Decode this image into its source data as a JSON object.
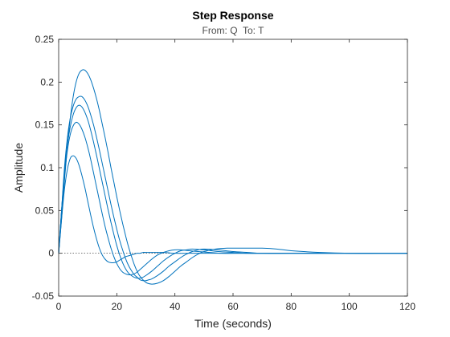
{
  "chart_data": {
    "type": "line",
    "title": "Step Response",
    "subtitle": "From: Q  To: T",
    "xlabel": "Time (seconds)",
    "ylabel": "Amplitude",
    "xlim": [
      0,
      120
    ],
    "ylim": [
      -0.05,
      0.25
    ],
    "xticks": [
      0,
      20,
      40,
      60,
      80,
      100,
      120
    ],
    "yticks": [
      -0.05,
      0,
      0.05,
      0.1,
      0.15,
      0.2,
      0.25
    ],
    "xtick_labels": [
      "0",
      "20",
      "40",
      "60",
      "80",
      "100",
      "120"
    ],
    "ytick_labels": [
      "-0.05",
      "0",
      "0.05",
      "0.1",
      "0.15",
      "0.2",
      "0.25"
    ],
    "grid": false,
    "baseline": 0,
    "line_color": "#0072BD",
    "series": [
      {
        "x": [
          0,
          1,
          2,
          3,
          4,
          5,
          6,
          7,
          8,
          9,
          10,
          11,
          12,
          13,
          14,
          15,
          16,
          17,
          18,
          19,
          20,
          21,
          22,
          23,
          24,
          25,
          26,
          27,
          28,
          29,
          30,
          31,
          32,
          33,
          34,
          35,
          36,
          38,
          40,
          45,
          50,
          55,
          60,
          70,
          80,
          90,
          100,
          110,
          120
        ],
        "values": [
          0,
          0.04,
          0.075,
          0.098,
          0.111,
          0.114,
          0.111,
          0.103,
          0.091,
          0.077,
          0.061,
          0.045,
          0.03,
          0.017,
          0.006,
          -0.002,
          -0.007,
          -0.01,
          -0.011,
          -0.011,
          -0.01,
          -0.008,
          -0.006,
          -0.004,
          -0.003,
          -0.002,
          -0.001,
          0,
          0,
          0.001,
          0.001,
          0.001,
          0.001,
          0.001,
          0.001,
          0.001,
          0.001,
          0.0005,
          0,
          0,
          0,
          0,
          0,
          0,
          0,
          0,
          0,
          0,
          0
        ]
      },
      {
        "x": [
          0,
          1,
          2,
          3,
          4,
          5,
          6,
          7,
          8,
          9,
          10,
          11,
          12,
          13,
          14,
          15,
          16,
          17,
          18,
          19,
          20,
          21,
          22,
          23,
          24,
          25,
          26,
          27,
          28,
          29,
          30,
          32,
          34,
          36,
          38,
          40,
          42,
          45,
          48,
          52,
          56,
          60,
          65,
          70,
          80,
          90,
          100,
          110,
          120
        ],
        "values": [
          0,
          0.05,
          0.09,
          0.12,
          0.139,
          0.149,
          0.153,
          0.151,
          0.145,
          0.136,
          0.124,
          0.11,
          0.094,
          0.078,
          0.062,
          0.046,
          0.031,
          0.018,
          0.006,
          -0.004,
          -0.012,
          -0.018,
          -0.022,
          -0.024,
          -0.025,
          -0.025,
          -0.024,
          -0.022,
          -0.019,
          -0.016,
          -0.013,
          -0.007,
          -0.002,
          0.001,
          0.003,
          0.004,
          0.004,
          0.003,
          0.002,
          0.001,
          0,
          0,
          0,
          0,
          0,
          0,
          0,
          0,
          0
        ]
      },
      {
        "x": [
          0,
          1,
          2,
          3,
          4,
          5,
          6,
          7,
          8,
          9,
          10,
          11,
          12,
          13,
          14,
          15,
          16,
          17,
          18,
          19,
          20,
          21,
          22,
          23,
          24,
          25,
          26,
          27,
          28,
          29,
          30,
          32,
          34,
          36,
          38,
          40,
          42,
          44,
          46,
          50,
          55,
          60,
          65,
          70,
          80,
          90,
          100,
          110,
          120
        ],
        "values": [
          0,
          0.05,
          0.095,
          0.126,
          0.148,
          0.162,
          0.17,
          0.173,
          0.171,
          0.165,
          0.156,
          0.144,
          0.13,
          0.115,
          0.099,
          0.083,
          0.067,
          0.051,
          0.036,
          0.022,
          0.009,
          -0.002,
          -0.011,
          -0.018,
          -0.023,
          -0.026,
          -0.028,
          -0.029,
          -0.029,
          -0.028,
          -0.026,
          -0.021,
          -0.015,
          -0.009,
          -0.004,
          0,
          0.003,
          0.004,
          0.005,
          0.004,
          0.002,
          0.001,
          0,
          0,
          0,
          0,
          0,
          0,
          0
        ]
      },
      {
        "x": [
          0,
          1,
          2,
          3,
          4,
          5,
          6,
          7,
          8,
          9,
          10,
          11,
          12,
          13,
          14,
          15,
          16,
          17,
          18,
          19,
          20,
          21,
          22,
          23,
          24,
          25,
          26,
          27,
          28,
          29,
          30,
          31,
          32,
          34,
          36,
          38,
          40,
          42,
          44,
          46,
          48,
          50,
          55,
          60,
          65,
          70,
          80,
          100,
          120
        ],
        "values": [
          0,
          0.05,
          0.1,
          0.135,
          0.158,
          0.172,
          0.18,
          0.183,
          0.183,
          0.179,
          0.172,
          0.162,
          0.15,
          0.136,
          0.121,
          0.105,
          0.089,
          0.073,
          0.057,
          0.042,
          0.028,
          0.015,
          0.004,
          -0.006,
          -0.014,
          -0.02,
          -0.025,
          -0.028,
          -0.031,
          -0.032,
          -0.032,
          -0.031,
          -0.03,
          -0.026,
          -0.021,
          -0.015,
          -0.01,
          -0.005,
          -0.001,
          0.002,
          0.004,
          0.005,
          0.004,
          0.002,
          0.001,
          0,
          0,
          0,
          0
        ]
      },
      {
        "x": [
          0,
          1,
          2,
          3,
          4,
          5,
          6,
          7,
          8,
          9,
          10,
          11,
          12,
          13,
          14,
          15,
          16,
          17,
          18,
          19,
          20,
          21,
          22,
          23,
          24,
          25,
          26,
          27,
          28,
          30,
          32,
          34,
          36,
          38,
          40,
          42,
          44,
          46,
          48,
          50,
          54,
          58,
          62,
          66,
          70,
          75,
          80,
          90,
          100,
          110,
          120
        ],
        "values": [
          0,
          0.04,
          0.085,
          0.125,
          0.158,
          0.183,
          0.2,
          0.21,
          0.214,
          0.214,
          0.21,
          0.203,
          0.193,
          0.181,
          0.167,
          0.151,
          0.135,
          0.118,
          0.1,
          0.083,
          0.066,
          0.05,
          0.035,
          0.021,
          0.008,
          -0.003,
          -0.013,
          -0.021,
          -0.027,
          -0.034,
          -0.036,
          -0.035,
          -0.032,
          -0.027,
          -0.021,
          -0.015,
          -0.01,
          -0.005,
          -0.001,
          0.002,
          0.005,
          0.006,
          0.006,
          0.006,
          0.006,
          0.005,
          0.003,
          0.001,
          0,
          0,
          0
        ]
      }
    ]
  }
}
